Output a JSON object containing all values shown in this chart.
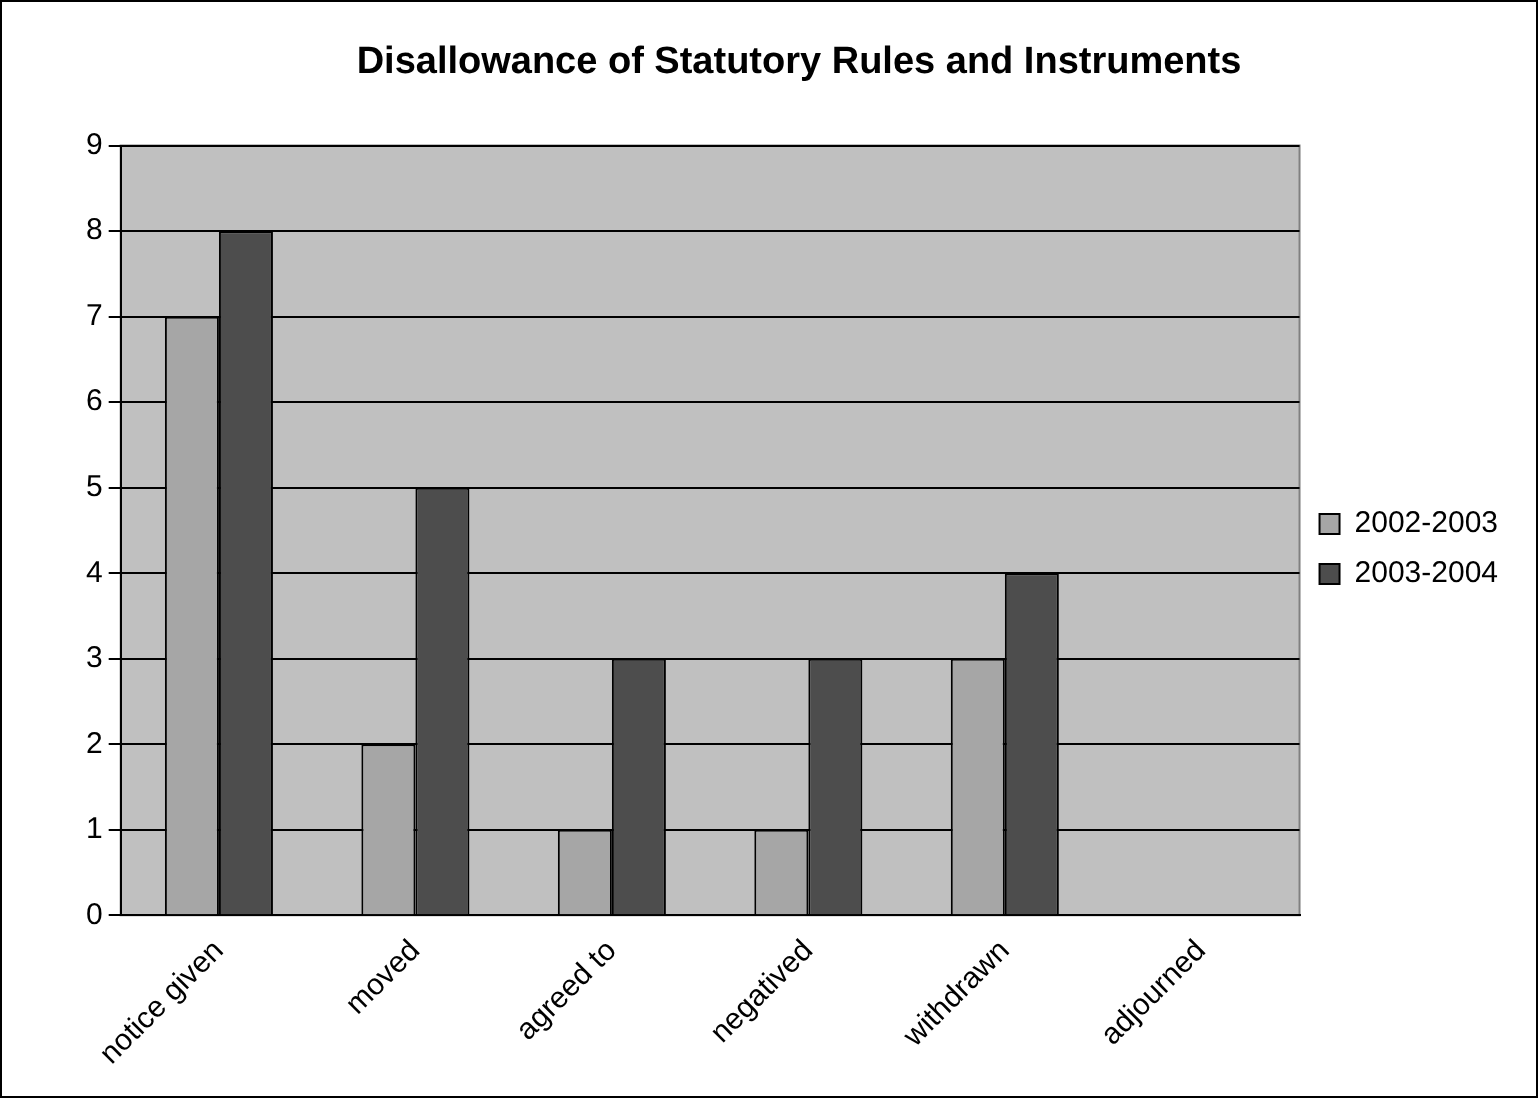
{
  "chart_data": {
    "type": "bar",
    "title": "Disallowance of Statutory Rules and Instruments",
    "categories": [
      "notice given",
      "moved",
      "agreed to",
      "negatived",
      "withdrawn",
      "adjourned"
    ],
    "series": [
      {
        "name": "2002-2003",
        "color": "#a6a6a6",
        "values": [
          7,
          2,
          1,
          1,
          3,
          0
        ]
      },
      {
        "name": "2003-2004",
        "color": "#4d4d4d",
        "values": [
          8,
          5,
          3,
          3,
          4,
          0
        ]
      }
    ],
    "ylim": [
      0,
      9
    ],
    "yticks": [
      0,
      1,
      2,
      3,
      4,
      5,
      6,
      7,
      8,
      9
    ],
    "grid": "y",
    "legend": "right"
  }
}
